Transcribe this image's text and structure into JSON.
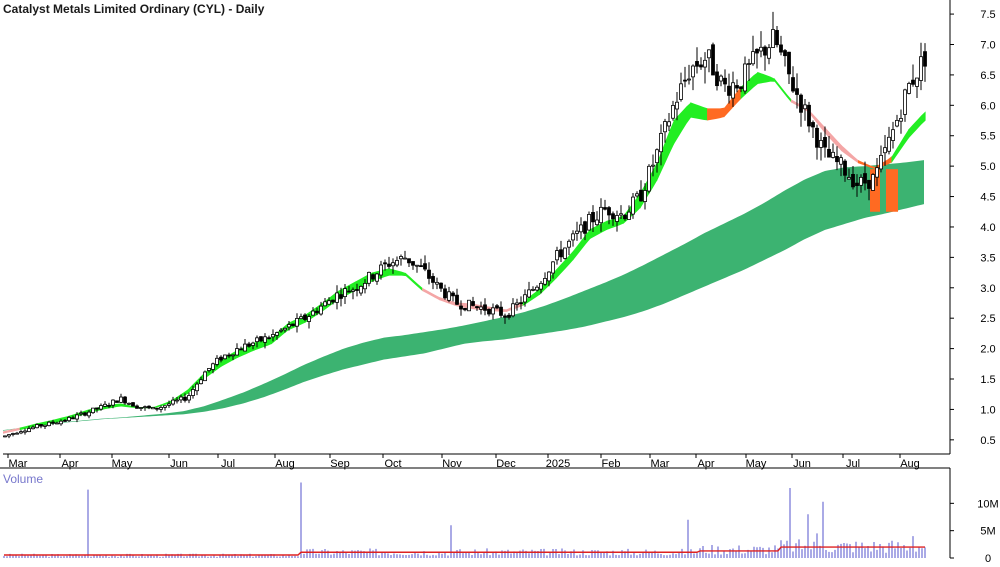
{
  "chart_data": [
    {
      "type": "candlestick",
      "title": "Catalyst Metals Limited Ordinary (CYL) - Daily",
      "x_tick_labels": [
        "Mar",
        "Apr",
        "May",
        "Jun",
        "Jul",
        "Aug",
        "Sep",
        "Oct",
        "Nov",
        "Dec",
        "2025",
        "Feb",
        "Mar",
        "Apr",
        "May",
        "Jun",
        "Jul",
        "Aug"
      ],
      "y_tick_labels": [
        "0.5",
        "1.0",
        "1.5",
        "2.0",
        "2.5",
        "3.0",
        "3.5",
        "4.0",
        "4.5",
        "5.0",
        "5.5",
        "6.0",
        "6.5",
        "7.0",
        "7.5"
      ],
      "ylim": [
        0.3,
        7.6
      ],
      "price_path": [
        0.55,
        0.65,
        0.72,
        0.78,
        0.85,
        0.95,
        1.05,
        1.18,
        1.05,
        1.0,
        1.1,
        1.2,
        1.6,
        1.85,
        2.0,
        2.1,
        2.2,
        2.35,
        2.5,
        2.7,
        2.9,
        3.0,
        3.2,
        3.4,
        3.5,
        3.3,
        3.0,
        2.75,
        2.7,
        2.65,
        2.55,
        2.8,
        3.1,
        3.5,
        3.8,
        4.1,
        4.3,
        4.2,
        4.5,
        5.2,
        6.0,
        6.6,
        6.8,
        6.3,
        6.4,
        6.8,
        7.1,
        6.4,
        5.8,
        5.2,
        5.0,
        4.7,
        4.8,
        5.5,
        6.3,
        6.8
      ],
      "short_band_low": [
        0.6,
        0.66,
        0.72,
        0.77,
        0.84,
        0.93,
        1.0,
        1.05,
        1.02,
        1.02,
        1.1,
        1.25,
        1.5,
        1.7,
        1.85,
        1.97,
        2.07,
        2.3,
        2.42,
        2.6,
        2.8,
        2.95,
        3.1,
        3.2,
        3.2,
        2.95,
        2.8,
        2.7,
        2.65,
        2.62,
        2.6,
        2.7,
        2.88,
        3.15,
        3.45,
        3.8,
        3.95,
        4.05,
        4.3,
        4.75,
        5.35,
        5.8,
        5.75,
        5.8,
        6.1,
        6.35,
        6.4,
        6.05,
        5.9,
        5.55,
        5.25,
        5.05,
        4.95,
        5.05,
        5.45,
        5.75
      ],
      "short_band_high": [
        0.64,
        0.7,
        0.77,
        0.83,
        0.9,
        0.99,
        1.06,
        1.1,
        1.04,
        1.04,
        1.14,
        1.32,
        1.6,
        1.82,
        1.98,
        2.1,
        2.18,
        2.42,
        2.55,
        2.74,
        2.95,
        3.1,
        3.25,
        3.32,
        3.25,
        3.0,
        2.85,
        2.76,
        2.74,
        2.69,
        2.64,
        2.77,
        2.98,
        3.3,
        3.6,
        3.96,
        4.1,
        4.18,
        4.55,
        5.05,
        5.75,
        6.05,
        5.95,
        5.95,
        6.3,
        6.55,
        6.45,
        6.1,
        5.95,
        5.65,
        5.35,
        5.1,
        4.98,
        5.15,
        5.6,
        5.9
      ],
      "short_band_color": [
        "red",
        "green",
        "green",
        "green",
        "green",
        "green",
        "green",
        "green",
        "green",
        "green",
        "green",
        "green",
        "green",
        "green",
        "green",
        "green",
        "green",
        "green",
        "green",
        "green",
        "green",
        "green",
        "green",
        "green",
        "green",
        "red",
        "red",
        "red",
        "red",
        "red",
        "red",
        "green",
        "green",
        "green",
        "green",
        "green",
        "green",
        "green",
        "green",
        "green",
        "green",
        "green",
        "orange",
        "orange",
        "green",
        "green",
        "green",
        "red",
        "red",
        "red",
        "red",
        "orange",
        "orange",
        "green",
        "green",
        "green"
      ],
      "long_band_low": [
        0.65,
        0.7,
        0.74,
        0.78,
        0.81,
        0.84,
        0.86,
        0.88,
        0.9,
        0.92,
        0.96,
        1.02,
        1.1,
        1.2,
        1.32,
        1.45,
        1.56,
        1.66,
        1.74,
        1.82,
        1.87,
        1.92,
        2.0,
        2.08,
        2.12,
        2.15,
        2.2,
        2.25,
        2.3,
        2.36,
        2.44,
        2.52,
        2.62,
        2.74,
        2.88,
        3.02,
        3.16,
        3.3,
        3.46,
        3.62,
        3.8,
        3.95,
        4.05,
        4.15,
        4.22,
        4.3,
        4.38
      ],
      "long_band_high": [
        0.66,
        0.7,
        0.75,
        0.79,
        0.82,
        0.85,
        0.87,
        0.9,
        0.93,
        0.97,
        1.05,
        1.16,
        1.28,
        1.42,
        1.57,
        1.73,
        1.87,
        2.0,
        2.1,
        2.18,
        2.22,
        2.27,
        2.32,
        2.38,
        2.45,
        2.52,
        2.6,
        2.7,
        2.82,
        2.95,
        3.08,
        3.22,
        3.38,
        3.55,
        3.72,
        3.9,
        4.06,
        4.22,
        4.4,
        4.6,
        4.78,
        4.92,
        4.98,
        5.0,
        5.03,
        5.06,
        5.1
      ],
      "colors": {
        "green": "#22ee22",
        "long_band": "#3cb371",
        "red": "#f4a6a6",
        "orange": "#ff6a22",
        "candle": "#000000"
      }
    },
    {
      "type": "bar",
      "title": "Volume",
      "y_tick_labels": [
        "0",
        "5M",
        "10M"
      ],
      "ylim": [
        0,
        15
      ],
      "units": "M",
      "spikes": [
        {
          "i": 88,
          "v": 12.5
        },
        {
          "i": 301,
          "v": 13.8
        },
        {
          "i": 452,
          "v": 6.0
        },
        {
          "i": 688,
          "v": 7.0
        },
        {
          "i": 789,
          "v": 12.8
        },
        {
          "i": 808,
          "v": 8.0
        },
        {
          "i": 824,
          "v": 10.3
        },
        {
          "i": 818,
          "v": 4.5
        },
        {
          "i": 913,
          "v": 4.0
        }
      ],
      "average_line_color": "#dd2222",
      "bar_color": "#5555cc"
    }
  ]
}
